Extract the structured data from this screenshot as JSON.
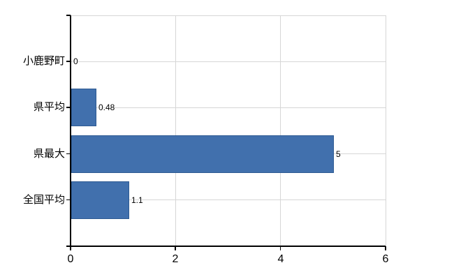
{
  "chart_data": {
    "type": "bar",
    "orientation": "horizontal",
    "title": "",
    "xlabel": "",
    "ylabel": "",
    "categories": [
      "小鹿野町",
      "県平均",
      "県最大",
      "全国平均"
    ],
    "series": [
      {
        "name": "",
        "values": [
          0,
          0.48,
          5,
          1.1
        ]
      }
    ],
    "values": [
      0,
      0.48,
      5,
      1.1
    ],
    "data_labels": [
      "0",
      "0.48",
      "5",
      "1.1"
    ],
    "xlim": [
      0,
      6
    ],
    "x_tick_values": [
      0,
      2,
      4,
      6
    ],
    "x_tick_labels": [
      "0",
      "2",
      "4",
      "6"
    ],
    "grid": "on",
    "legend": "none",
    "colors": {
      "bar_fill": "#4170ad",
      "bar_border": "#2d5a92",
      "gridline": "#d6d6d6",
      "axis_line": "#000000",
      "text": "#000000",
      "background": "#ffffff"
    }
  }
}
